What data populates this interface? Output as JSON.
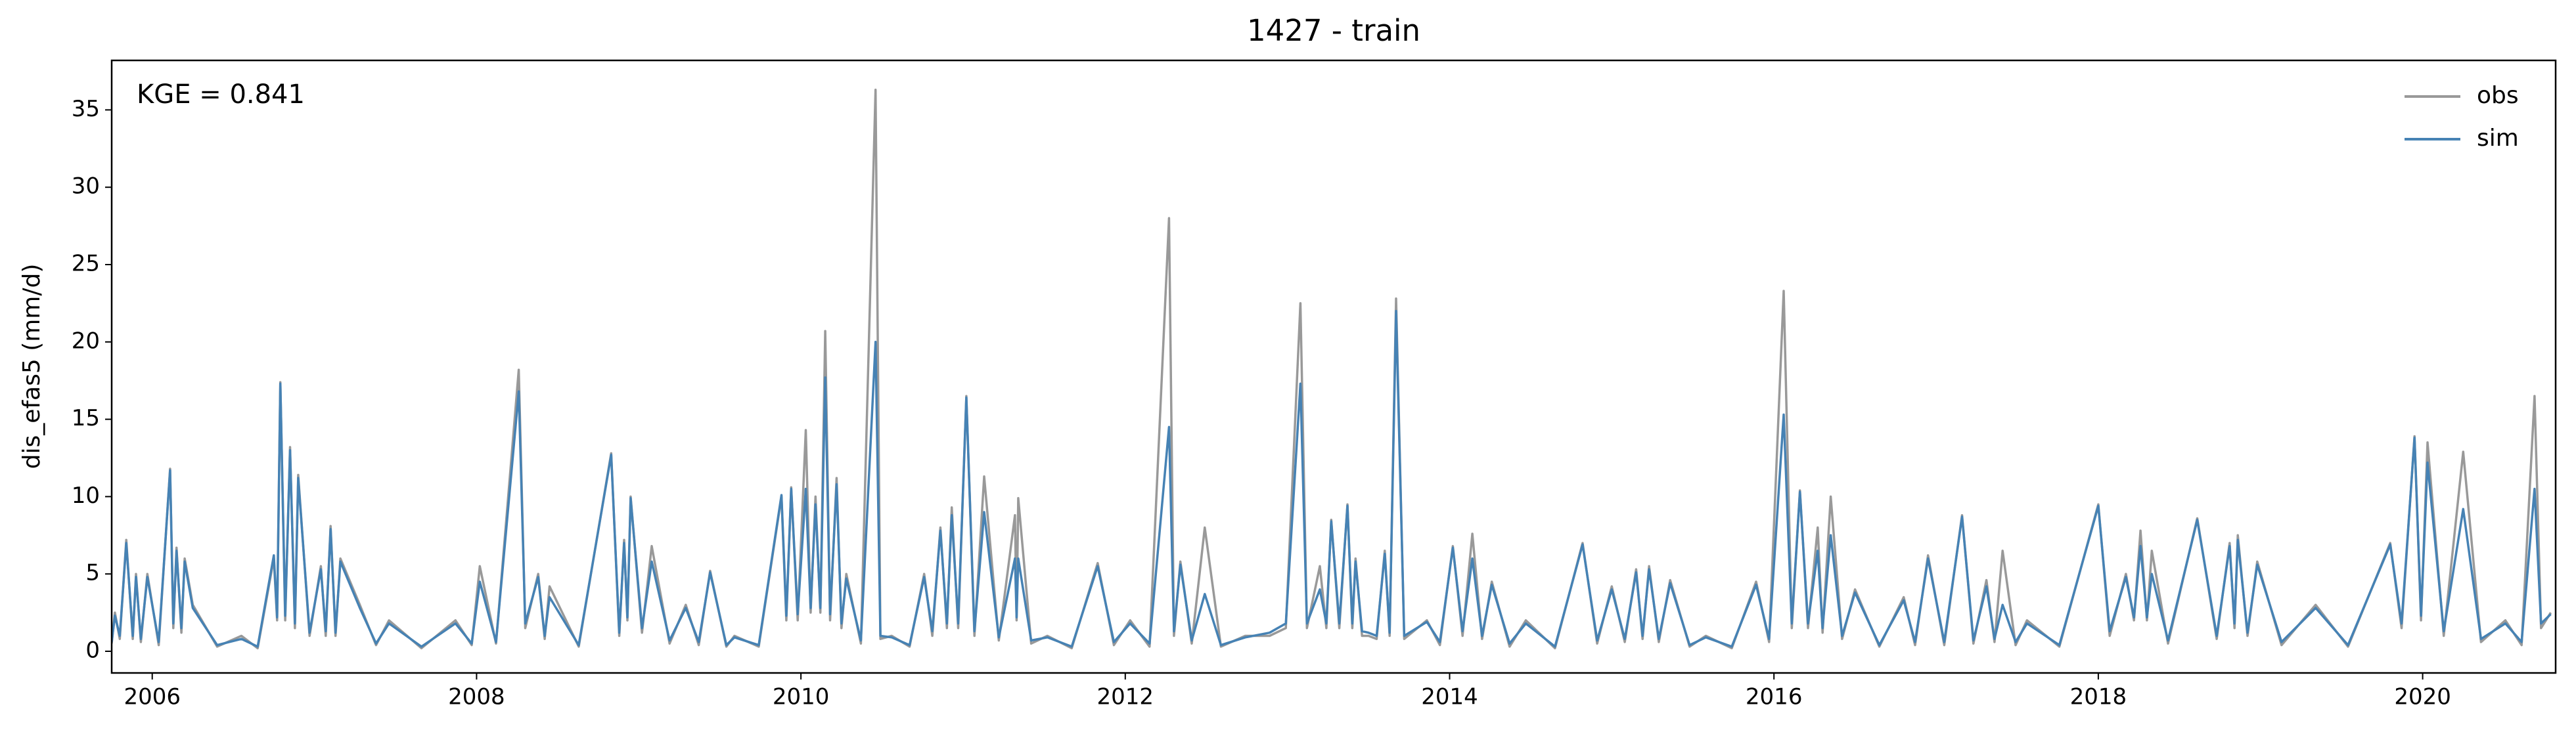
{
  "chart_data": {
    "type": "line",
    "title": "1427 - train",
    "ylabel": "dis_efas5 (mm/d)",
    "annotation": "KGE = 0.841",
    "legend": "upper right",
    "grid": false,
    "xlim": [
      2005.75,
      2020.82
    ],
    "xticks": [
      2006,
      2008,
      2010,
      2012,
      2014,
      2016,
      2018,
      2020
    ],
    "ylim": [
      -1.4,
      38.2
    ],
    "yticks": [
      0,
      5,
      10,
      15,
      20,
      25,
      30,
      35
    ],
    "x": [
      2005.75,
      2005.77,
      2005.8,
      2005.84,
      2005.88,
      2005.9,
      2005.93,
      2005.97,
      2006.04,
      2006.11,
      2006.13,
      2006.15,
      2006.18,
      2006.2,
      2006.25,
      2006.4,
      2006.55,
      2006.65,
      2006.75,
      2006.77,
      2006.79,
      2006.82,
      2006.85,
      2006.88,
      2006.9,
      2006.97,
      2007.04,
      2007.07,
      2007.1,
      2007.13,
      2007.16,
      2007.28,
      2007.38,
      2007.46,
      2007.66,
      2007.87,
      2007.97,
      2008.02,
      2008.12,
      2008.26,
      2008.3,
      2008.38,
      2008.42,
      2008.45,
      2008.63,
      2008.83,
      2008.88,
      2008.91,
      2008.93,
      2008.95,
      2009.02,
      2009.08,
      2009.19,
      2009.29,
      2009.37,
      2009.44,
      2009.54,
      2009.59,
      2009.74,
      2009.88,
      2009.91,
      2009.94,
      2009.98,
      2010.03,
      2010.06,
      2010.09,
      2010.12,
      2010.15,
      2010.18,
      2010.22,
      2010.25,
      2010.28,
      2010.37,
      2010.46,
      2010.49,
      2010.56,
      2010.67,
      2010.76,
      2010.81,
      2010.86,
      2010.9,
      2010.93,
      2010.97,
      2011.02,
      2011.07,
      2011.13,
      2011.22,
      2011.32,
      2011.33,
      2011.34,
      2011.42,
      2011.52,
      2011.67,
      2011.83,
      2011.93,
      2012.03,
      2012.15,
      2012.27,
      2012.3,
      2012.34,
      2012.41,
      2012.49,
      2012.59,
      2012.74,
      2012.89,
      2012.99,
      2013.08,
      2013.12,
      2013.2,
      2013.24,
      2013.27,
      2013.32,
      2013.37,
      2013.4,
      2013.42,
      2013.46,
      2013.5,
      2013.55,
      2013.6,
      2013.63,
      2013.67,
      2013.72,
      2013.86,
      2013.94,
      2014.02,
      2014.08,
      2014.14,
      2014.2,
      2014.26,
      2014.37,
      2014.47,
      2014.65,
      2014.82,
      2014.91,
      2015.0,
      2015.08,
      2015.15,
      2015.19,
      2015.23,
      2015.29,
      2015.36,
      2015.48,
      2015.58,
      2015.74,
      2015.89,
      2015.97,
      2016.06,
      2016.11,
      2016.16,
      2016.21,
      2016.27,
      2016.3,
      2016.35,
      2016.42,
      2016.5,
      2016.65,
      2016.8,
      2016.87,
      2016.95,
      2017.05,
      2017.16,
      2017.23,
      2017.31,
      2017.36,
      2017.41,
      2017.49,
      2017.56,
      2017.76,
      2018.0,
      2018.07,
      2018.17,
      2018.22,
      2018.26,
      2018.3,
      2018.33,
      2018.43,
      2018.61,
      2018.73,
      2018.81,
      2018.84,
      2018.86,
      2018.92,
      2018.98,
      2019.13,
      2019.34,
      2019.54,
      2019.8,
      2019.87,
      2019.95,
      2019.99,
      2020.03,
      2020.13,
      2020.25,
      2020.36,
      2020.51,
      2020.61,
      2020.69,
      2020.73,
      2020.79
    ],
    "series": [
      {
        "name": "obs",
        "color": "#999999",
        "values": [
          0.5,
          2.5,
          0.8,
          7.2,
          0.8,
          5,
          0.6,
          5,
          0.4,
          11.8,
          1.5,
          6.7,
          1.2,
          6,
          3,
          0.3,
          1,
          0.2,
          6,
          2,
          17.4,
          2,
          13.2,
          1.5,
          11.4,
          1,
          5.5,
          1,
          8.1,
          1,
          6,
          3,
          0.4,
          2,
          0.2,
          2,
          0.4,
          5.5,
          0.5,
          18.2,
          1.5,
          5,
          0.8,
          4.2,
          0.3,
          12.8,
          1,
          7.2,
          2,
          10,
          1.2,
          6.8,
          0.5,
          3,
          0.4,
          5.2,
          0.3,
          1,
          0.3,
          10,
          2,
          10.6,
          2,
          14.3,
          2.5,
          10,
          2.5,
          20.7,
          2,
          11.2,
          1.5,
          5,
          0.5,
          36.3,
          0.8,
          1,
          0.3,
          5,
          1,
          8,
          1.5,
          9.3,
          1.5,
          16.5,
          1,
          11.3,
          0.7,
          8.8,
          2,
          9.9,
          0.5,
          1,
          0.2,
          5.7,
          0.4,
          2,
          0.3,
          28,
          1,
          5.8,
          0.5,
          8,
          0.3,
          1,
          1,
          1.5,
          22.5,
          1.5,
          5.5,
          1.5,
          8.5,
          1.5,
          9.5,
          1.5,
          6,
          1,
          1,
          0.8,
          6.5,
          1,
          22.8,
          0.8,
          2,
          0.4,
          6.8,
          1,
          7.6,
          0.8,
          4.5,
          0.3,
          2,
          0.2,
          7,
          0.5,
          4.2,
          0.6,
          5.3,
          0.8,
          5.5,
          0.6,
          4.6,
          0.3,
          1,
          0.2,
          4.5,
          0.6,
          23.3,
          1.5,
          10.4,
          1.5,
          8,
          1.2,
          10,
          0.8,
          4,
          0.3,
          3.5,
          0.4,
          6.2,
          0.4,
          8.8,
          0.5,
          4.6,
          0.6,
          6.5,
          0.4,
          2,
          0.3,
          9.5,
          1,
          5,
          2,
          7.8,
          2,
          6.5,
          0.5,
          8.6,
          0.8,
          7,
          1.5,
          7.5,
          1,
          5.8,
          0.4,
          3,
          0.3,
          7,
          1.5,
          13.9,
          2,
          13.5,
          1,
          12.9,
          0.6,
          2,
          0.4,
          16.5,
          1.5,
          2.5
        ]
      },
      {
        "name": "sim",
        "color": "#4682b4",
        "values": [
          0.6,
          2.3,
          1,
          7,
          1,
          4.8,
          0.8,
          4.8,
          0.6,
          11.7,
          1.8,
          6.5,
          1.5,
          5.8,
          2.8,
          0.4,
          0.8,
          0.3,
          6.2,
          2.2,
          17.3,
          2.3,
          13,
          1.8,
          11.2,
          1.2,
          5.3,
          1.3,
          7.9,
          1.2,
          5.8,
          2.8,
          0.5,
          1.8,
          0.3,
          1.8,
          0.5,
          4.5,
          0.6,
          16.8,
          1.8,
          4.8,
          1,
          3.5,
          0.4,
          12.7,
          1.2,
          7,
          2.2,
          9.9,
          1.5,
          5.8,
          0.7,
          2.8,
          0.6,
          5.1,
          0.4,
          0.9,
          0.4,
          10.1,
          2.3,
          10.5,
          2.4,
          10.5,
          2.8,
          9.5,
          2.8,
          17.7,
          2.4,
          10.8,
          1.8,
          4.7,
          0.7,
          20,
          1,
          0.9,
          0.4,
          4.8,
          1.3,
          7.8,
          1.8,
          8.8,
          1.8,
          16.4,
          1.3,
          9,
          0.9,
          6,
          2.2,
          6,
          0.7,
          0.9,
          0.3,
          5.5,
          0.6,
          1.8,
          0.5,
          14.5,
          1.3,
          5.6,
          0.7,
          3.7,
          0.4,
          0.9,
          1.2,
          1.8,
          17.3,
          1.8,
          4,
          1.8,
          8.4,
          1.8,
          9.4,
          1.8,
          5.8,
          1.3,
          1.2,
          1,
          6.3,
          1.2,
          22,
          1,
          1.9,
          0.6,
          6.7,
          1.3,
          6,
          1,
          4.3,
          0.5,
          1.8,
          0.3,
          6.9,
          0.7,
          4,
          0.8,
          5.1,
          1,
          5.3,
          0.8,
          4.4,
          0.4,
          0.9,
          0.3,
          4.3,
          0.8,
          15.3,
          1.8,
          10.3,
          1.8,
          6.5,
          1.5,
          7.5,
          1,
          3.8,
          0.4,
          3.3,
          0.6,
          6,
          0.6,
          8.7,
          0.7,
          4.2,
          0.8,
          3,
          0.6,
          1.8,
          0.4,
          9.4,
          1.3,
          4.8,
          2.2,
          6.8,
          2.2,
          5,
          0.7,
          8.5,
          1,
          6.8,
          1.8,
          7.2,
          1.2,
          5.6,
          0.6,
          2.8,
          0.4,
          6.9,
          1.8,
          13.8,
          2.3,
          12.2,
          1.3,
          9.2,
          0.8,
          1.8,
          0.6,
          10.5,
          1.8,
          2.4
        ]
      }
    ]
  }
}
